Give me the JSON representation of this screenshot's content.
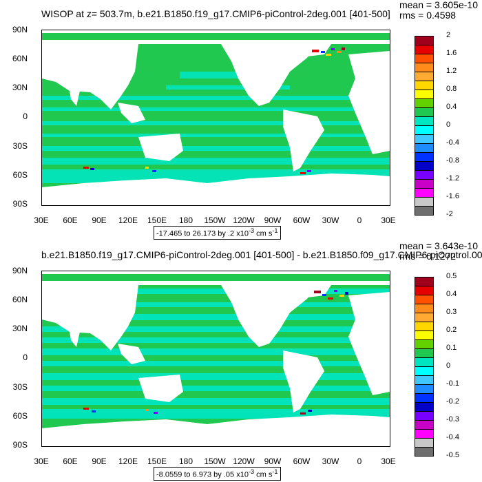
{
  "panel_1": {
    "title": "WISOP at z= 503.7m, b.e21.B1850.f19_g17.CMIP6-piControl-2deg.001 [401-500]",
    "mean": "mean = 3.605e-10",
    "rms": "rms = 0.4598",
    "range": "-17.465 to 26.173 by .2 x10",
    "range_exp": "-3",
    "range_unit": " cm s",
    "range_unit_exp": "-1",
    "colorbar_labels": [
      "2",
      "1.6",
      "1.2",
      "0.8",
      "0.4",
      "0",
      "-0.4",
      "-0.8",
      "-1.2",
      "-1.6",
      "-2"
    ]
  },
  "panel_2": {
    "title": "b.e21.B1850.f19_g17.CMIP6-piControl-2deg.001 [401-500] - b.e21.B1850.f09_g17.CMIP6-piControl.001",
    "mean": "mean = 3.643e-10",
    "rms": "rms = 0.1272",
    "range": "-8.0559 to 6.973 by .05 x10",
    "range_exp": "-3",
    "range_unit": " cm s",
    "range_unit_exp": "-1",
    "colorbar_labels": [
      "0.5",
      "0.4",
      "0.3",
      "0.2",
      "0.1",
      "0",
      "-0.1",
      "-0.2",
      "-0.3",
      "-0.4",
      "-0.5"
    ]
  },
  "lat_labels": [
    "90N",
    "60N",
    "30N",
    "0",
    "30S",
    "60S",
    "90S"
  ],
  "lon_labels": [
    "30E",
    "60E",
    "90E",
    "120E",
    "150E",
    "180",
    "150W",
    "120W",
    "90W",
    "60W",
    "30W",
    "0",
    "30E"
  ],
  "colorbar_colors": [
    "#a0001c",
    "#e60000",
    "#ff4f00",
    "#ff8c1a",
    "#ffab33",
    "#ffd700",
    "#ffff00",
    "#63d100",
    "#20c850",
    "#00e6c0",
    "#00ffff",
    "#3fc8ff",
    "#1e8cff",
    "#0032ff",
    "#0000c8",
    "#7800ff",
    "#c800c8",
    "#ff00ff",
    "#c8c8c8",
    "#6e6e6e"
  ],
  "ocean_colors": {
    "base": "#20c850",
    "alt": "#00e6c0",
    "land": "#ffffff"
  }
}
